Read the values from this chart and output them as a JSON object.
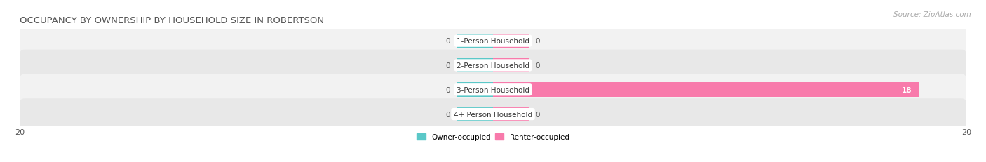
{
  "title": "OCCUPANCY BY OWNERSHIP BY HOUSEHOLD SIZE IN ROBERTSON",
  "source": "Source: ZipAtlas.com",
  "categories": [
    "1-Person Household",
    "2-Person Household",
    "3-Person Household",
    "4+ Person Household"
  ],
  "owner_values": [
    0,
    0,
    0,
    0
  ],
  "renter_values": [
    0,
    0,
    18,
    0
  ],
  "xlim": [
    -20,
    20
  ],
  "owner_color": "#5bc8c8",
  "renter_color": "#f87aab",
  "owner_label": "Owner-occupied",
  "renter_label": "Renter-occupied",
  "bar_height": 0.6,
  "row_colors": [
    "#f2f2f2",
    "#e8e8e8"
  ],
  "title_fontsize": 9.5,
  "source_fontsize": 7.5,
  "label_fontsize": 7.5,
  "tick_fontsize": 8,
  "zero_bar_width": 1.5
}
